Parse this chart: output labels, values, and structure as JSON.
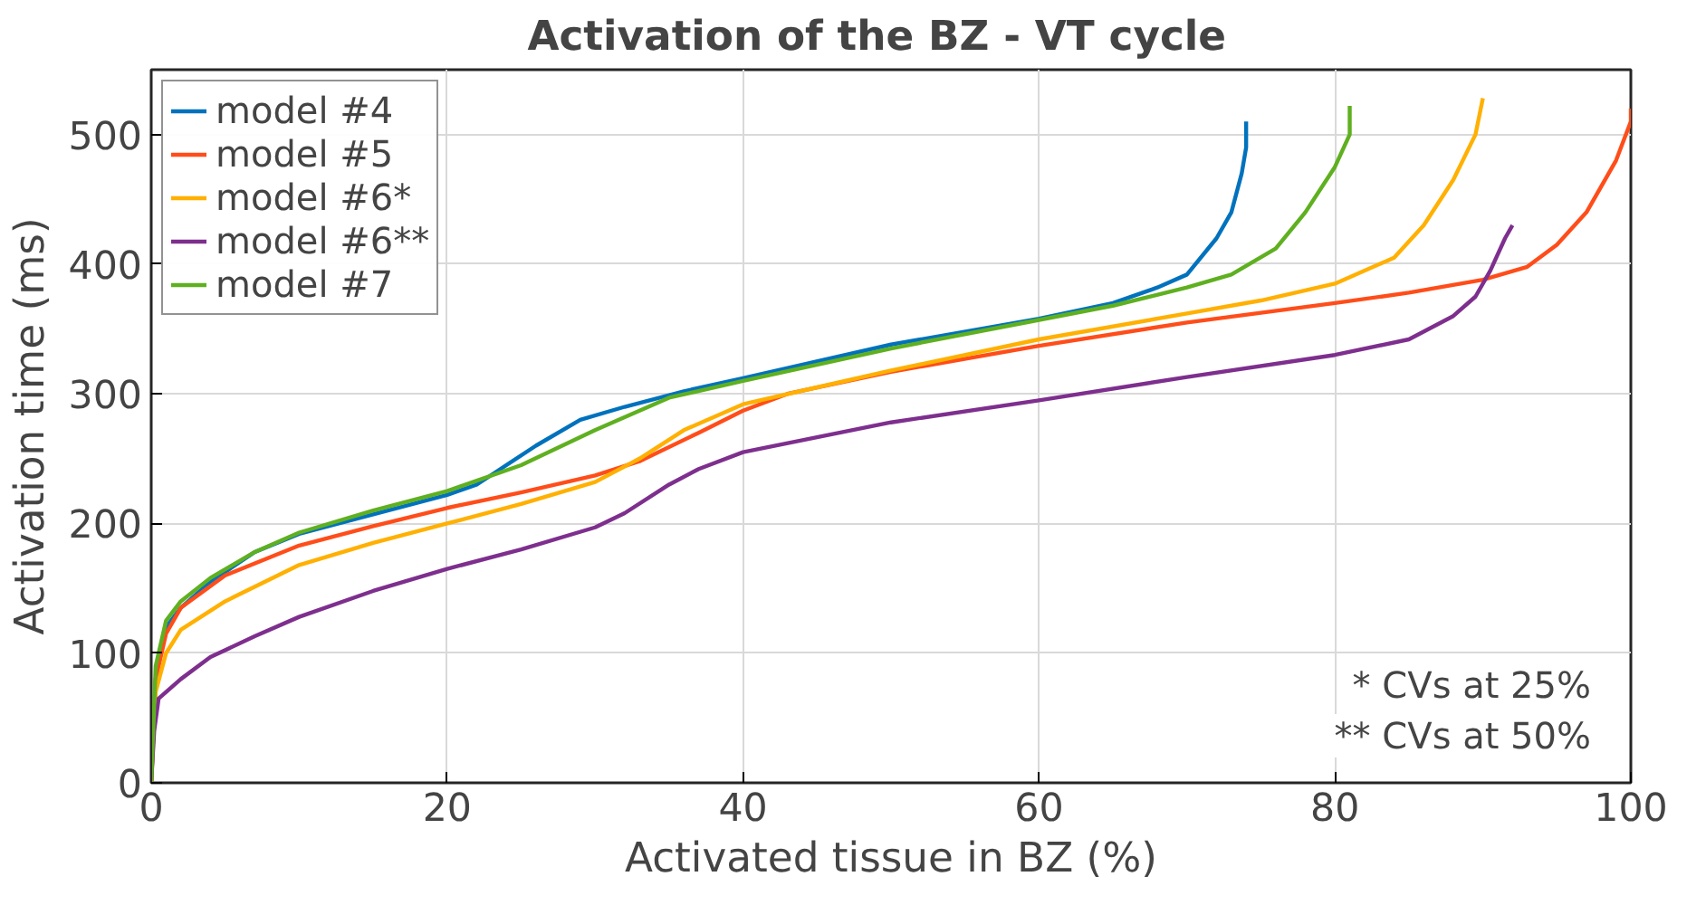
{
  "chart_data": {
    "type": "line",
    "title": "Activation of the BZ  -  VT cycle",
    "xlabel": "Activated tissue in BZ (%)",
    "ylabel": "Activation time (ms)",
    "xlim": [
      0,
      100
    ],
    "xticks": [
      0,
      20,
      40,
      60,
      80,
      100
    ],
    "ylim": [
      0,
      550
    ],
    "yticks": [
      0,
      100,
      200,
      300,
      400,
      500
    ],
    "grid": true,
    "legend": "top left",
    "annotations": [
      "* CVs at 25%",
      "** CVs at 50%"
    ],
    "series": [
      {
        "name": "model #4",
        "color": "#0072bd",
        "x": [
          0,
          0.3,
          1,
          2,
          4,
          7,
          10,
          15,
          20,
          22,
          26,
          29,
          32,
          36,
          40,
          50,
          60,
          65,
          68,
          70,
          72,
          73,
          73.7,
          74,
          74
        ],
        "values": [
          0,
          80,
          120,
          135,
          155,
          178,
          192,
          207,
          222,
          230,
          260,
          280,
          290,
          302,
          312,
          338,
          358,
          370,
          382,
          392,
          420,
          440,
          470,
          490,
          510
        ]
      },
      {
        "name": "model #5",
        "color": "#ff4d1a",
        "x": [
          0,
          0.3,
          1,
          2,
          5,
          10,
          15,
          20,
          25,
          30,
          33,
          37,
          40,
          43,
          50,
          60,
          70,
          80,
          85,
          90,
          93,
          95,
          97,
          99,
          100,
          100
        ],
        "values": [
          0,
          80,
          115,
          135,
          160,
          183,
          198,
          212,
          224,
          237,
          248,
          270,
          287,
          300,
          317,
          337,
          355,
          370,
          378,
          388,
          398,
          415,
          440,
          480,
          510,
          520
        ]
      },
      {
        "name": "model #6*",
        "color": "#ffb000",
        "x": [
          0,
          0.3,
          1,
          2,
          5,
          10,
          15,
          20,
          25,
          30,
          33,
          36,
          40,
          45,
          50,
          60,
          70,
          75,
          80,
          84,
          86,
          88,
          89.5,
          90
        ],
        "values": [
          0,
          70,
          100,
          118,
          140,
          168,
          185,
          200,
          215,
          232,
          250,
          272,
          292,
          305,
          318,
          342,
          362,
          372,
          385,
          405,
          430,
          465,
          500,
          528
        ]
      },
      {
        "name": "model #6**",
        "color": "#7e2f8e",
        "x": [
          0,
          0.2,
          0.5,
          2,
          4,
          7,
          10,
          15,
          20,
          25,
          30,
          32,
          35,
          37,
          40,
          50,
          60,
          70,
          80,
          85,
          88,
          89.5,
          90.5,
          91.5,
          92
        ],
        "values": [
          0,
          40,
          65,
          80,
          97,
          113,
          128,
          148,
          165,
          180,
          197,
          208,
          230,
          242,
          255,
          278,
          295,
          313,
          330,
          342,
          360,
          375,
          395,
          420,
          430
        ]
      },
      {
        "name": "model #7",
        "color": "#5fb020",
        "x": [
          0,
          0.3,
          1,
          2,
          4,
          7,
          10,
          15,
          20,
          25,
          30,
          35,
          40,
          50,
          60,
          65,
          70,
          73,
          76,
          78,
          80,
          81,
          81
        ],
        "values": [
          0,
          90,
          125,
          140,
          158,
          178,
          193,
          210,
          225,
          245,
          272,
          297,
          310,
          335,
          357,
          368,
          382,
          392,
          412,
          440,
          475,
          500,
          522
        ]
      }
    ]
  }
}
